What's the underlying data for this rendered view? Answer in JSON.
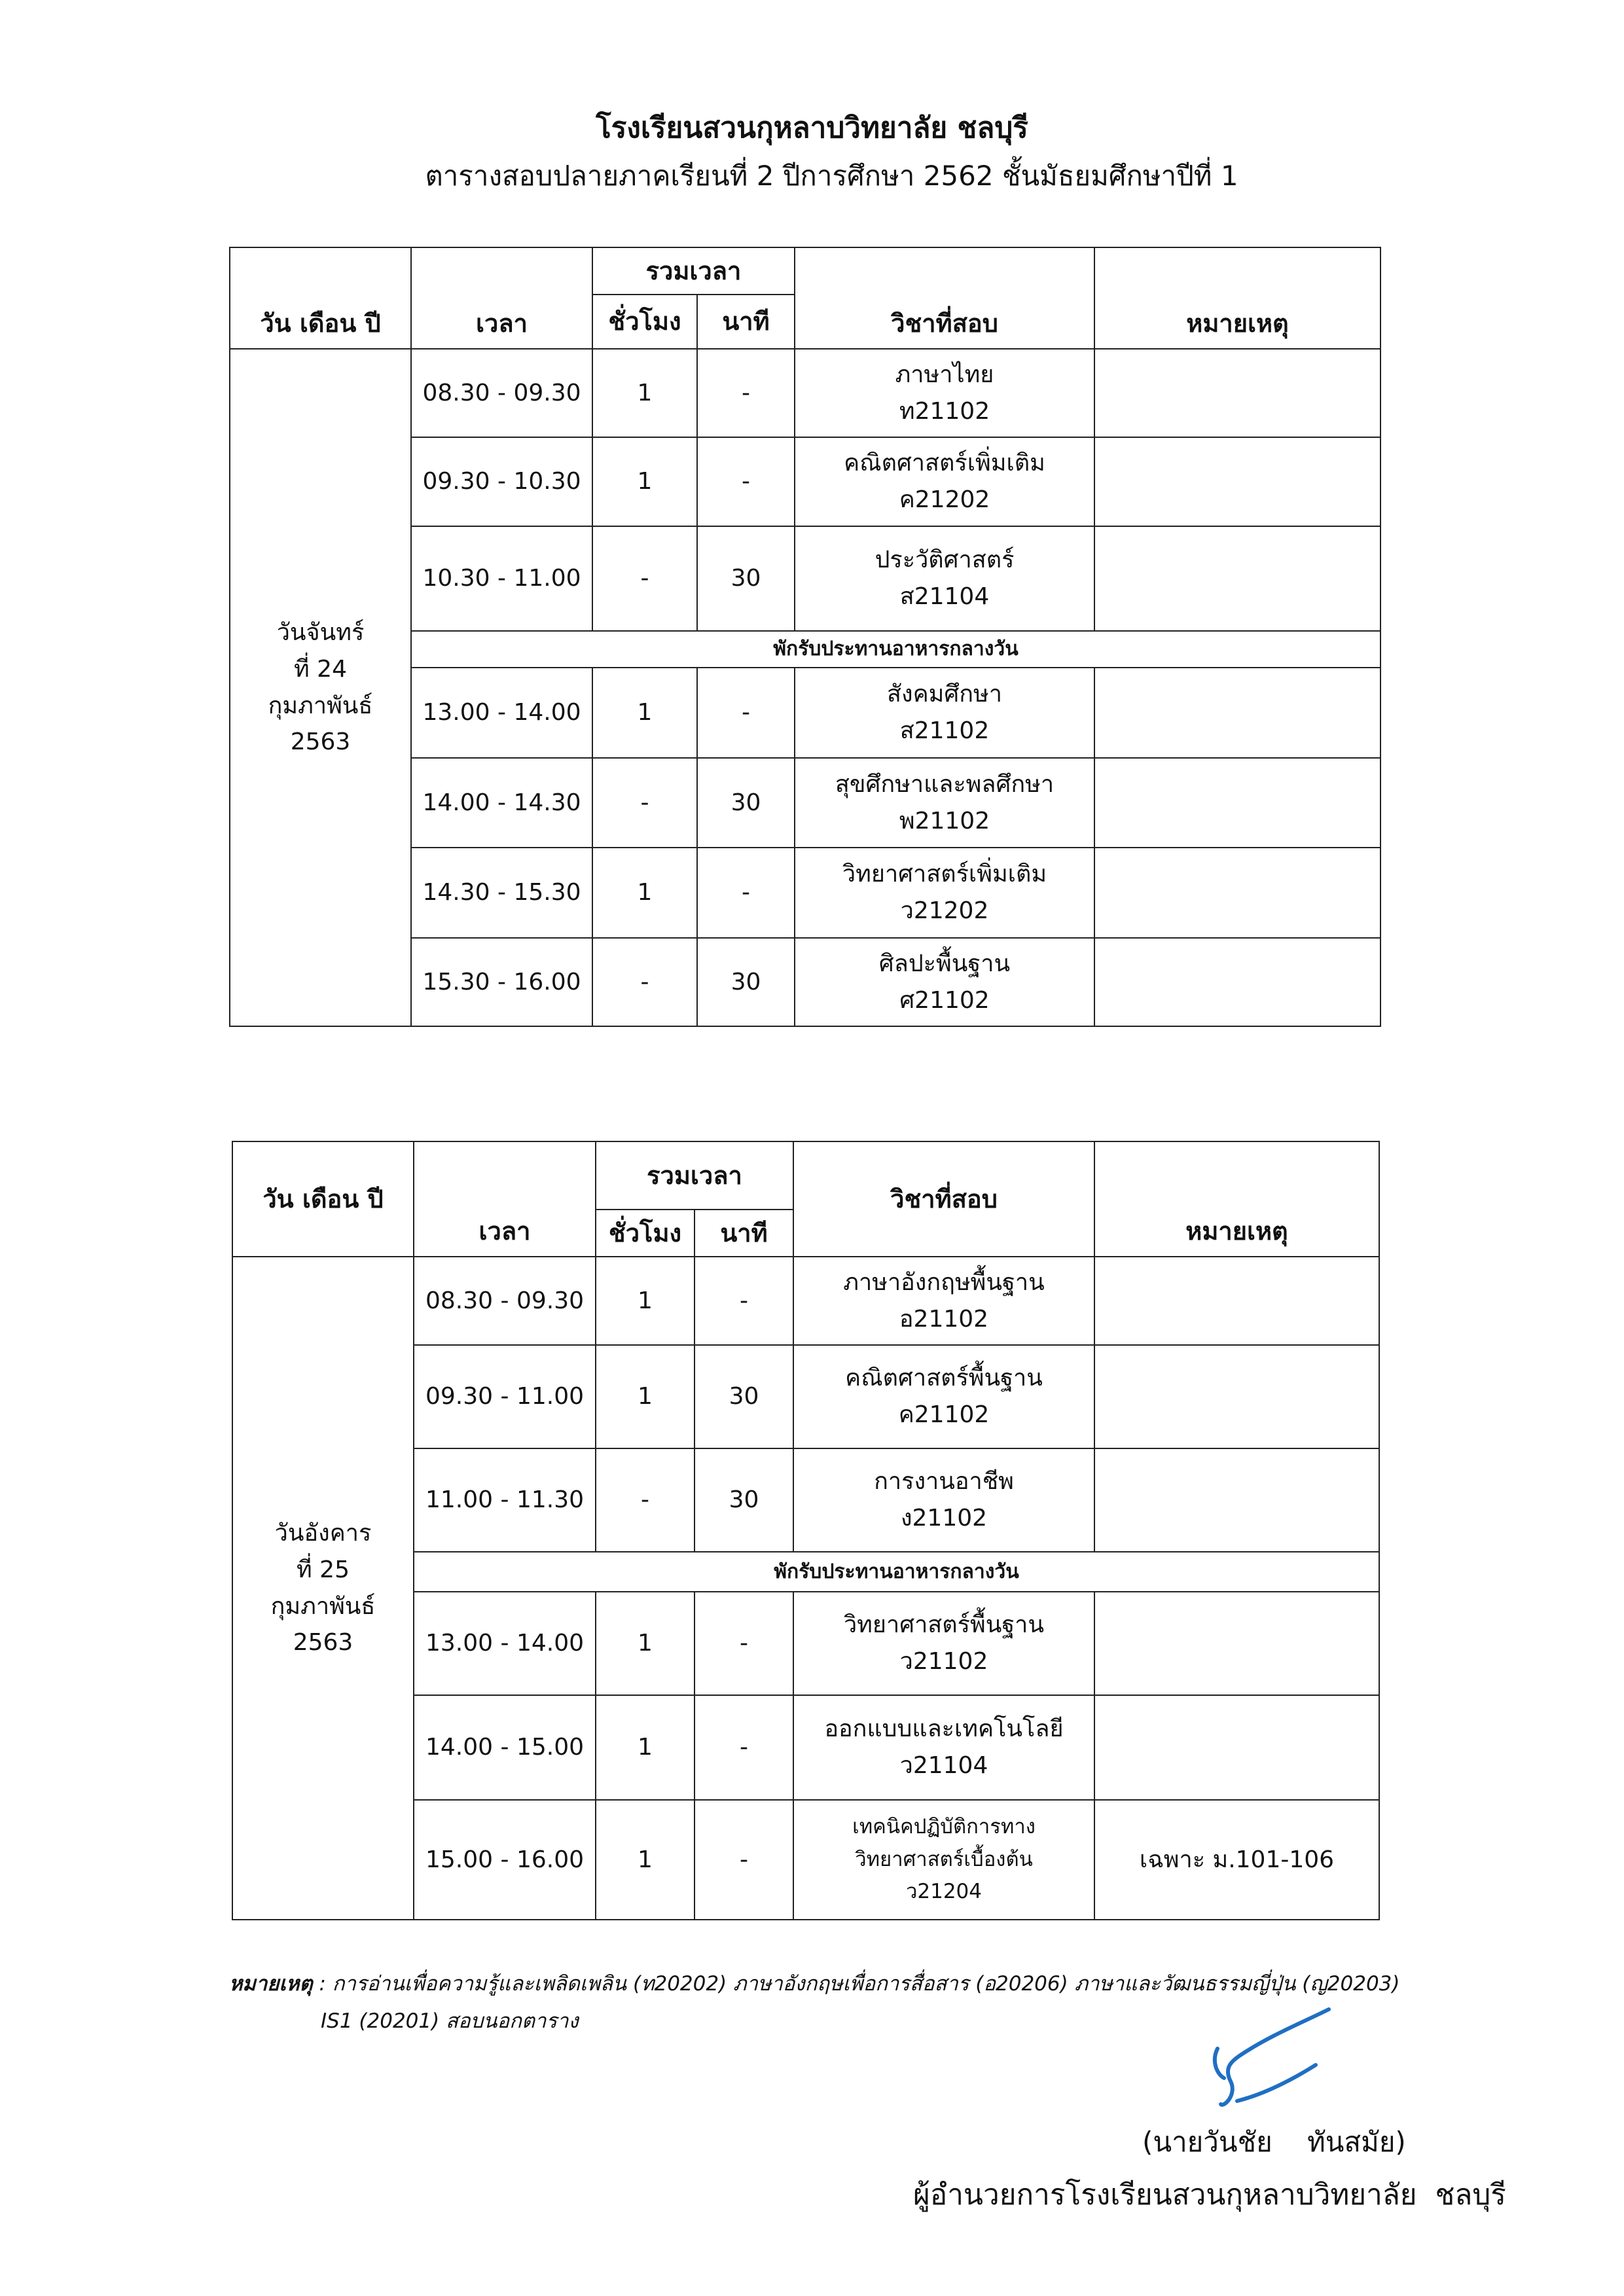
{
  "header": {
    "title": "โรงเรียนสวนกุหลาบวิทยาลัย  ชลบุรี",
    "subtitle": "ตารางสอบปลายภาคเรียนที่ 2 ปีการศึกษา 2562   ชั้นมัธยมศึกษาปีที่ 1"
  },
  "columns": {
    "date": "วัน เดือน ปี",
    "time": "เวลา",
    "total": "รวมเวลา",
    "hours": "ชั่วโมง",
    "minutes": "นาที",
    "subject": "วิชาที่สอบ",
    "remark": "หมายเหตุ"
  },
  "break_label": "พักรับประทานอาหารกลางวัน",
  "tables": [
    {
      "date_lines": [
        "วันจันทร์",
        "ที่ 24",
        "กุมภาพันธ์",
        "2563"
      ],
      "rows": [
        {
          "time": "08.30 - 09.30",
          "hours": "1",
          "minutes": "-",
          "subject": "ภาษาไทย",
          "code": "ท21102",
          "remark": ""
        },
        {
          "time": "09.30 - 10.30",
          "hours": "1",
          "minutes": "-",
          "subject": "คณิตศาสตร์เพิ่มเติม",
          "code": "ค21202",
          "remark": ""
        },
        {
          "time": "10.30 - 11.00",
          "hours": "-",
          "minutes": "30",
          "subject": "ประวัติศาสตร์",
          "code": "ส21104",
          "remark": ""
        },
        {
          "time": "13.00 - 14.00",
          "hours": "1",
          "minutes": "-",
          "subject": "สังคมศึกษา",
          "code": "ส21102",
          "remark": ""
        },
        {
          "time": "14.00 - 14.30",
          "hours": "-",
          "minutes": "30",
          "subject": "สุขศึกษาและพลศึกษา",
          "code": "พ21102",
          "remark": ""
        },
        {
          "time": "14.30 - 15.30",
          "hours": "1",
          "minutes": "-",
          "subject": "วิทยาศาสตร์เพิ่มเติม",
          "code": "ว21202",
          "remark": ""
        },
        {
          "time": "15.30 - 16.00",
          "hours": "-",
          "minutes": "30",
          "subject": "ศิลปะพื้นฐาน",
          "code": "ศ21102",
          "remark": ""
        }
      ]
    },
    {
      "date_lines": [
        "วันอังคาร",
        "ที่ 25",
        "กุมภาพันธ์",
        "2563"
      ],
      "rows": [
        {
          "time": "08.30 - 09.30",
          "hours": "1",
          "minutes": "-",
          "subject": "ภาษาอังกฤษพื้นฐาน",
          "code": "อ21102",
          "remark": ""
        },
        {
          "time": "09.30 - 11.00",
          "hours": "1",
          "minutes": "30",
          "subject": "คณิตศาสตร์พื้นฐาน",
          "code": "ค21102",
          "remark": ""
        },
        {
          "time": "11.00 - 11.30",
          "hours": "-",
          "minutes": "30",
          "subject": "การงานอาชีพ",
          "code": "ง21102",
          "remark": ""
        },
        {
          "time": "13.00 - 14.00",
          "hours": "1",
          "minutes": "-",
          "subject": "วิทยาศาสตร์พื้นฐาน",
          "code": "ว21102",
          "remark": ""
        },
        {
          "time": "14.00 - 15.00",
          "hours": "1",
          "minutes": "-",
          "subject": "ออกแบบและเทคโนโลยี",
          "code": "ว21104",
          "remark": ""
        },
        {
          "time": "15.00 - 16.00",
          "hours": "1",
          "minutes": "-",
          "subject": "เทคนิคปฏิบัติการทาง",
          "subject2": "วิทยาศาสตร์เบื้องต้น",
          "code": "ว21204",
          "remark": "เฉพาะ ม.101-106"
        }
      ]
    }
  ],
  "footnote": {
    "label": "หมายเหตุ",
    "line1": " : การอ่านเพื่อความรู้และเพลิดเพลิน (ท20202) ภาษาอังกฤษเพื่อการสื่อสาร (อ20206)  ภาษาและวัฒนธรรมญี่ปุ่น (ญ20203)",
    "line2": "IS1 (20201) สอบนอกตาราง"
  },
  "signature": {
    "ink_color": "#1f6fc4",
    "name": "(นายวันชัย    ทันสมัย)",
    "position": "ผู้อำนวยการโรงเรียนสวนกุหลาบวิทยาลัย  ชลบุรี"
  }
}
